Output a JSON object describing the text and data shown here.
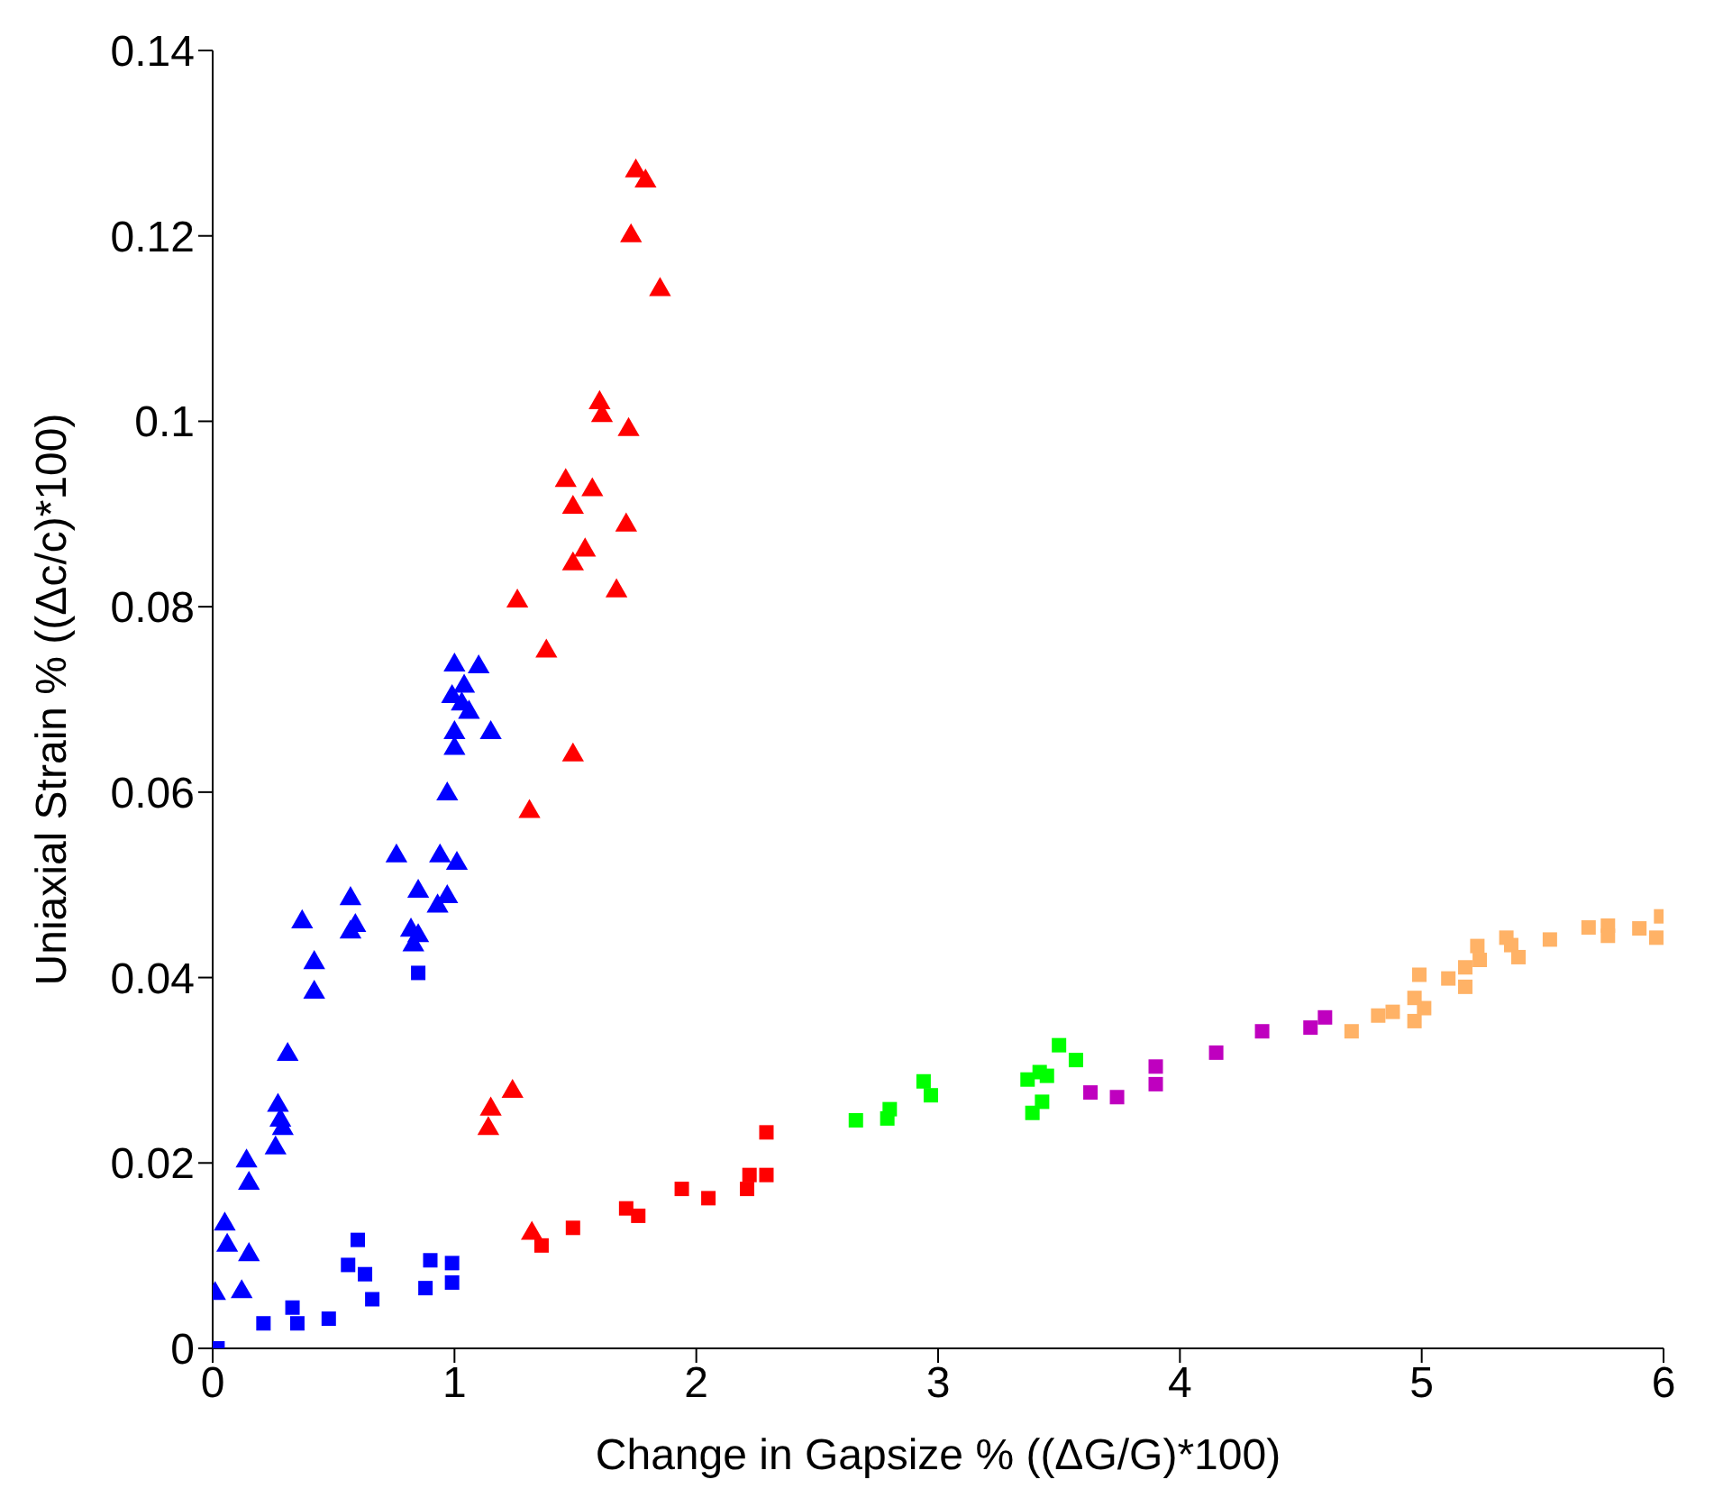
{
  "chart_data": {
    "type": "scatter",
    "xlabel": "Change in Gapsize % ((ΔG/G)*100)",
    "ylabel": "Uniaxial Strain % ((Δc/c)*100)",
    "xlim": [
      0,
      6
    ],
    "xticks": [
      0,
      1,
      2,
      3,
      4,
      5,
      6
    ],
    "ylim": [
      0,
      0.14
    ],
    "yticks": [
      0,
      0.02,
      0.04,
      0.06,
      0.08,
      0.1,
      0.12,
      0.14
    ],
    "grid": false,
    "legend": false,
    "series": [
      {
        "color": "#0000ff",
        "marker": "triangle",
        "x": [
          1.0,
          1.1,
          1.04,
          0.99,
          1.03,
          1.06,
          1.15,
          1.0,
          1.0,
          0.97,
          0.76,
          0.94,
          1.01,
          0.85,
          0.97,
          0.93,
          0.57,
          0.59,
          0.57,
          0.82,
          0.85,
          0.83,
          0.37,
          0.42,
          0.42,
          0.31,
          0.27,
          0.28,
          0.29,
          0.26,
          0.14,
          0.15,
          0.05,
          0.06,
          0.15,
          0.01,
          0.12
        ],
        "values": [
          0.0737,
          0.0735,
          0.0714,
          0.0703,
          0.0695,
          0.0686,
          0.0664,
          0.0664,
          0.0647,
          0.0598,
          0.0531,
          0.0531,
          0.0523,
          0.0493,
          0.0487,
          0.0477,
          0.0485,
          0.0456,
          0.0449,
          0.0451,
          0.0445,
          0.0435,
          0.046,
          0.0416,
          0.0384,
          0.0317,
          0.0262,
          0.0246,
          0.0237,
          0.0216,
          0.0202,
          0.0178,
          0.0134,
          0.0111,
          0.0101,
          0.0059,
          0.0061
        ]
      },
      {
        "color": "#0000ff",
        "marker": "square",
        "x": [
          0.02,
          0.85,
          0.6,
          0.56,
          0.63,
          0.66,
          0.9,
          0.99,
          0.88,
          0.99,
          0.21,
          0.33,
          0.35,
          0.48
        ],
        "values": [
          0.0,
          0.0405,
          0.0117,
          0.009,
          0.008,
          0.0053,
          0.0095,
          0.0092,
          0.0065,
          0.0071,
          0.0027,
          0.0044,
          0.0027,
          0.0032
        ]
      },
      {
        "color": "#ff0000",
        "marker": "triangle",
        "x": [
          1.75,
          1.79,
          1.73,
          1.85,
          1.6,
          1.61,
          1.72,
          1.46,
          1.57,
          1.49,
          1.71,
          1.54,
          1.49,
          1.67,
          1.26,
          1.38,
          1.49,
          1.31,
          1.24,
          1.15,
          1.14,
          1.32
        ],
        "values": [
          0.127,
          0.1259,
          0.12,
          0.1142,
          0.102,
          0.1006,
          0.0991,
          0.0936,
          0.0926,
          0.0907,
          0.0888,
          0.0861,
          0.0846,
          0.0817,
          0.0806,
          0.0752,
          0.064,
          0.0579,
          0.0277,
          0.0258,
          0.0237,
          0.0124
        ]
      },
      {
        "color": "#ff0000",
        "marker": "square",
        "x": [
          1.36,
          1.49,
          1.71,
          1.76,
          1.94,
          2.05,
          2.21,
          2.22,
          2.29,
          2.29
        ],
        "values": [
          0.0111,
          0.013,
          0.0151,
          0.0143,
          0.0172,
          0.0162,
          0.0172,
          0.0187,
          0.0187,
          0.0233
        ]
      },
      {
        "color": "#00ff00",
        "marker": "square",
        "x": [
          2.66,
          2.79,
          2.8,
          2.94,
          2.97,
          3.37,
          3.42,
          3.45,
          3.43,
          3.39,
          3.5,
          3.57
        ],
        "values": [
          0.0246,
          0.0248,
          0.0258,
          0.0288,
          0.0273,
          0.029,
          0.0298,
          0.0294,
          0.0266,
          0.0254,
          0.0327,
          0.0311
        ]
      },
      {
        "color": "#bf00bf",
        "marker": "square",
        "x": [
          3.63,
          3.74,
          3.9,
          3.9,
          4.15,
          4.34,
          4.54,
          4.6
        ],
        "values": [
          0.0276,
          0.0271,
          0.0285,
          0.0304,
          0.0319,
          0.0342,
          0.0346,
          0.0357
        ]
      },
      {
        "color": "#ffb266",
        "marker": "square",
        "x": [
          4.71,
          4.82,
          4.88,
          4.97,
          5.01,
          4.97,
          4.99,
          5.11,
          5.18,
          5.18,
          5.23,
          5.24,
          5.35,
          5.37,
          5.4,
          5.53,
          5.69,
          5.77,
          5.77,
          5.9,
          5.97,
          5.99
        ],
        "values": [
          0.0342,
          0.0359,
          0.0363,
          0.0353,
          0.0367,
          0.0378,
          0.0403,
          0.0399,
          0.039,
          0.0411,
          0.0434,
          0.0419,
          0.0443,
          0.0435,
          0.0422,
          0.0441,
          0.0454,
          0.0456,
          0.0445,
          0.0453,
          0.0443,
          0.0466
        ]
      }
    ]
  }
}
